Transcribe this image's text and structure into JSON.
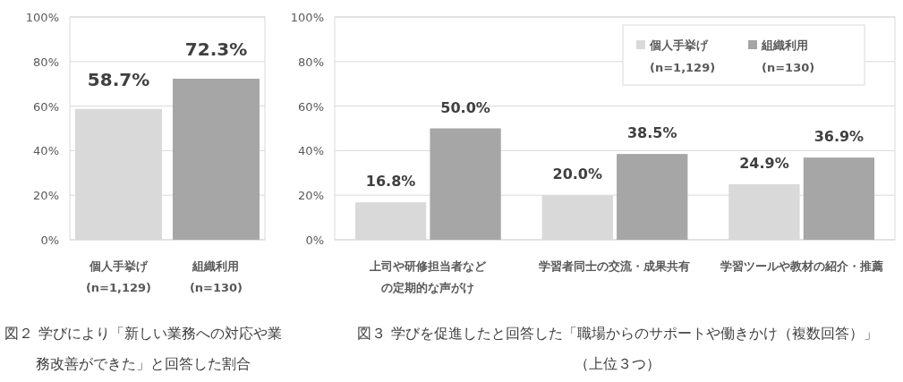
{
  "chart_data": [
    {
      "type": "bar",
      "title": "図２ 学びにより「新しい業務への対応や業務改善ができた」と回答した割合",
      "categories": [
        "個人手挙げ\n(n=1,129)",
        "組織利用\n(n=130)"
      ],
      "values": [
        58.7,
        72.3
      ],
      "colors": [
        "#d9d9d9",
        "#a6a6a6"
      ],
      "value_labels": [
        "58.7%",
        "72.3%"
      ],
      "ylim": [
        0,
        100
      ],
      "yticks": [
        {
          "value": 0,
          "label": "0%"
        },
        {
          "value": 20,
          "label": "20%"
        },
        {
          "value": 40,
          "label": "40%"
        },
        {
          "value": 60,
          "label": "60%"
        },
        {
          "value": 80,
          "label": "80%"
        },
        {
          "value": 100,
          "label": "100%"
        }
      ],
      "grid": "y"
    },
    {
      "type": "bar",
      "title": "図３ 学びを促進したと回答した「職場からのサポートや働きかけ（複数回答）」（上位３つ）",
      "categories": [
        "上司や研修担当者などの定期的な声がけ",
        "学習者同士の交流・成果共有",
        "学習ツールや教材の紹介・推薦"
      ],
      "series": [
        {
          "name": "個人手挙げ\n(n=1,129)",
          "color": "#d9d9d9",
          "values": [
            16.8,
            20.0,
            24.9
          ],
          "value_labels": [
            "16.8%",
            "20.0%",
            "24.9%"
          ]
        },
        {
          "name": "組織利用\n(n=130)",
          "color": "#a6a6a6",
          "values": [
            50.0,
            38.5,
            36.9
          ],
          "value_labels": [
            "50.0%",
            "38.5%",
            "36.9%"
          ]
        }
      ],
      "ylim": [
        0,
        100
      ],
      "yticks": [
        {
          "value": 0,
          "label": "0%"
        },
        {
          "value": 20,
          "label": "20%"
        },
        {
          "value": 40,
          "label": "40%"
        },
        {
          "value": 60,
          "label": "60%"
        },
        {
          "value": 80,
          "label": "80%"
        },
        {
          "value": 100,
          "label": "100%"
        }
      ],
      "grid": "y",
      "legend": "top right"
    }
  ]
}
